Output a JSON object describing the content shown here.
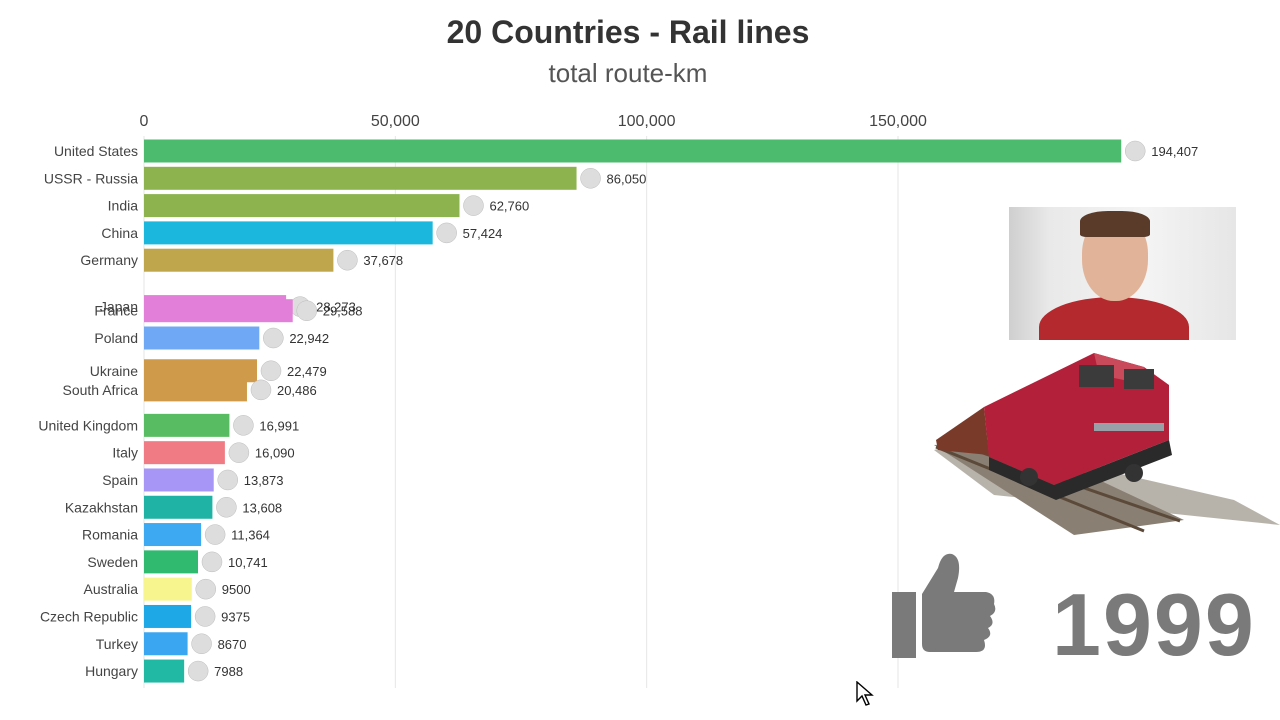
{
  "header": {
    "title": "20 Countries - Rail lines",
    "subtitle": "total route-km"
  },
  "year": "1999",
  "colors": {
    "grid": "#e6e6e6",
    "text": "#444444"
  },
  "chart_data": {
    "type": "bar",
    "orientation": "horizontal",
    "title": "20 Countries - Rail lines",
    "subtitle": "total route-km",
    "xlim": [
      0,
      200000
    ],
    "x_ticks": [
      {
        "value": 0,
        "label": "0"
      },
      {
        "value": 50000,
        "label": "50,000"
      },
      {
        "value": 100000,
        "label": "100,000"
      },
      {
        "value": 150000,
        "label": "150,000"
      }
    ],
    "bars": [
      {
        "name": "United States",
        "value": 194407,
        "label": "194,407",
        "color": "#4cbb6e",
        "slot": 0,
        "flag": "us-flag-icon"
      },
      {
        "name": "USSR - Russia",
        "value": 86050,
        "label": "86,050",
        "color": "#8db34f",
        "slot": 1,
        "flag": "russia-flag-icon"
      },
      {
        "name": "India",
        "value": 62760,
        "label": "62,760",
        "color": "#8db34f",
        "slot": 2,
        "flag": "india-flag-icon"
      },
      {
        "name": "China",
        "value": 57424,
        "label": "57,424",
        "color": "#1bb7dc",
        "slot": 3,
        "flag": "china-flag-icon"
      },
      {
        "name": "Germany",
        "value": 37678,
        "label": "37,678",
        "color": "#bfa54c",
        "slot": 4,
        "flag": "germany-flag-icon"
      },
      {
        "name": "Japan",
        "value": 28273,
        "label": "28,273",
        "color": "#e27fd8",
        "slot": 5.7,
        "flag": "japan-flag-icon"
      },
      {
        "name": "France",
        "value": 29588,
        "label": "29,588",
        "color": "#e27fd8",
        "slot": 5.85,
        "flag": "france-flag-icon"
      },
      {
        "name": "Poland",
        "value": 22942,
        "label": "22,942",
        "color": "#6fa8f5",
        "slot": 6.85,
        "flag": "poland-flag-icon"
      },
      {
        "name": "Ukraine",
        "value": 22479,
        "label": "22,479",
        "color": "#cf9a4a",
        "slot": 8.05,
        "flag": "ukraine-flag-icon"
      },
      {
        "name": "South Africa",
        "value": 20486,
        "label": "20,486",
        "color": "#cf9a4a",
        "slot": 8.75,
        "flag": "south-africa-flag-icon"
      },
      {
        "name": "United Kingdom",
        "value": 16991,
        "label": "16,991",
        "color": "#58bd62",
        "slot": 10.05,
        "flag": "uk-flag-icon"
      },
      {
        "name": "Italy",
        "value": 16090,
        "label": "16,090",
        "color": "#f17b84",
        "slot": 11.05,
        "flag": "italy-flag-icon"
      },
      {
        "name": "Spain",
        "value": 13873,
        "label": "13,873",
        "color": "#a796f5",
        "slot": 12.05,
        "flag": "spain-flag-icon"
      },
      {
        "name": "Kazakhstan",
        "value": 13608,
        "label": "13,608",
        "color": "#1fb3a5",
        "slot": 13.05,
        "flag": "kazakhstan-flag-icon"
      },
      {
        "name": "Romania",
        "value": 11364,
        "label": "11,364",
        "color": "#3da9f3",
        "slot": 14.05,
        "flag": "romania-flag-icon"
      },
      {
        "name": "Sweden",
        "value": 10741,
        "label": "10,741",
        "color": "#2fba70",
        "slot": 15.05,
        "flag": "sweden-flag-icon"
      },
      {
        "name": "Australia",
        "value": 9500,
        "label": "9500",
        "color": "#f6f58e",
        "slot": 16.05,
        "flag": "australia-flag-icon"
      },
      {
        "name": "Czech Republic",
        "value": 9375,
        "label": "9375",
        "color": "#1ea9e6",
        "slot": 17.05,
        "flag": "czech-flag-icon"
      },
      {
        "name": "Turkey",
        "value": 8670,
        "label": "8670",
        "color": "#3aa5f0",
        "slot": 18.05,
        "flag": "turkey-flag-icon"
      },
      {
        "name": "Hungary",
        "value": 7988,
        "label": "7988",
        "color": "#22b9a4",
        "slot": 19.05,
        "flag": "hungary-flag-icon"
      }
    ]
  }
}
